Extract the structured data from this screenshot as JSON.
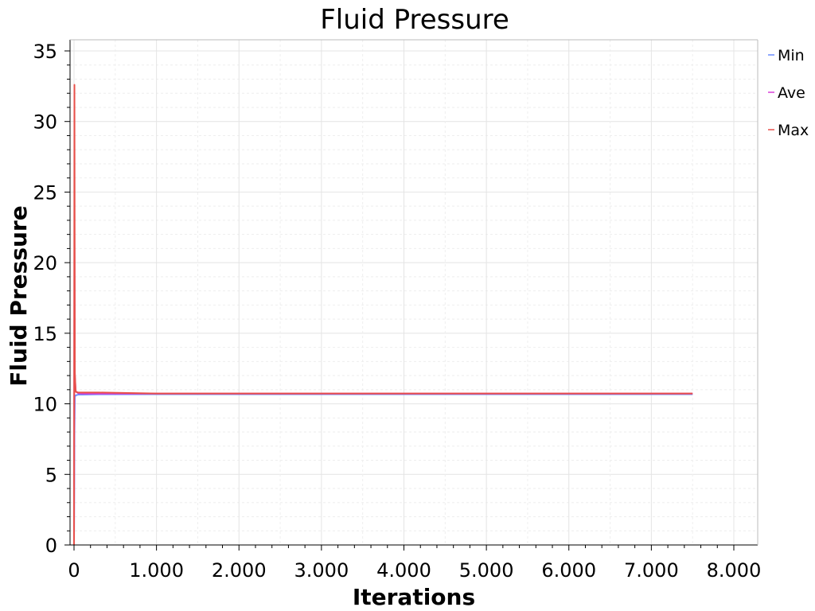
{
  "chart_data": {
    "type": "line",
    "title": "Fluid Pressure",
    "xlabel": "Iterations",
    "ylabel": "Fluid Pressure",
    "xlim": [
      0,
      8000
    ],
    "ylim": [
      0,
      35
    ],
    "x_ticks": [
      0,
      1000,
      2000,
      3000,
      4000,
      5000,
      6000,
      7000,
      8000
    ],
    "x_tick_labels": [
      "0",
      "1.000",
      "2.000",
      "3.000",
      "4.000",
      "5.000",
      "6.000",
      "7.000",
      "8.000"
    ],
    "y_ticks": [
      0,
      5,
      10,
      15,
      20,
      25,
      30,
      35
    ],
    "y_tick_labels": [
      "0",
      "5",
      "10",
      "15",
      "20",
      "25",
      "30",
      "35"
    ],
    "grid": true,
    "legend_position": "right",
    "series": [
      {
        "name": "Min",
        "color": "#6a8cff",
        "x": [
          0,
          5,
          10,
          20,
          50,
          100,
          300,
          1000,
          3000,
          5000,
          7500
        ],
        "y": [
          0,
          8.0,
          10.5,
          10.6,
          10.65,
          10.65,
          10.67,
          10.68,
          10.68,
          10.68,
          10.68
        ]
      },
      {
        "name": "Ave",
        "color": "#d83fd8",
        "x": [
          0,
          5,
          10,
          20,
          50,
          100,
          300,
          1000,
          3000,
          5000,
          7500
        ],
        "y": [
          0,
          21.5,
          12.0,
          10.9,
          10.75,
          10.72,
          10.72,
          10.72,
          10.72,
          10.72,
          10.72
        ]
      },
      {
        "name": "Max",
        "color": "#e8504a",
        "x": [
          0,
          5,
          10,
          20,
          50,
          100,
          300,
          1000,
          3000,
          5000,
          7500
        ],
        "y": [
          0,
          32.6,
          12.2,
          10.85,
          10.8,
          10.8,
          10.8,
          10.73,
          10.73,
          10.73,
          10.73
        ]
      }
    ]
  }
}
